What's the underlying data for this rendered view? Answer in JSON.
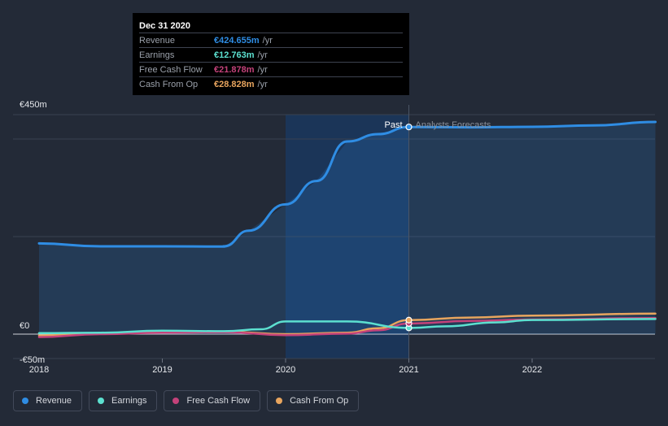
{
  "chart_data": {
    "type": "line",
    "title": "",
    "xlabel": "",
    "ylabel": "",
    "ylim": [
      -50,
      450
    ],
    "y_ticks": [
      {
        "value": 450,
        "label": "€450m"
      },
      {
        "value": 0,
        "label": "€0"
      },
      {
        "value": -50,
        "label": "-€50m"
      }
    ],
    "x_ticks": [
      {
        "value": 2018,
        "label": "2018"
      },
      {
        "value": 2019,
        "label": "2019"
      },
      {
        "value": 2020,
        "label": "2020"
      },
      {
        "value": 2021,
        "label": "2021"
      },
      {
        "value": 2022,
        "label": "2022"
      }
    ],
    "xlim": [
      2018,
      2023
    ],
    "past_label": "Past",
    "forecast_label": "Analysts Forecasts",
    "divider_x": 2021,
    "highlight_start_x": 2020,
    "series": [
      {
        "name": "Revenue",
        "color": "#2f8de4",
        "filled": true,
        "points": [
          [
            2018,
            186
          ],
          [
            2018.5,
            180
          ],
          [
            2019,
            180
          ],
          [
            2019.5,
            179.5
          ],
          [
            2019.5,
            180
          ],
          [
            2019.7,
            212
          ],
          [
            2020,
            266
          ],
          [
            2020.25,
            314
          ],
          [
            2020.5,
            395
          ],
          [
            2020.75,
            410
          ],
          [
            2021,
            424.7
          ],
          [
            2021.5,
            424
          ],
          [
            2022,
            425
          ],
          [
            2022.5,
            428
          ],
          [
            2023,
            435
          ]
        ]
      },
      {
        "name": "Earnings",
        "color": "#5ce0d0",
        "filled": false,
        "points": [
          [
            2018,
            2
          ],
          [
            2018.5,
            3
          ],
          [
            2019,
            7
          ],
          [
            2019.5,
            6
          ],
          [
            2019.8,
            10
          ],
          [
            2020,
            26
          ],
          [
            2020.5,
            26
          ],
          [
            2021,
            12.8
          ],
          [
            2021.3,
            16
          ],
          [
            2021.7,
            24
          ],
          [
            2022,
            29
          ],
          [
            2023,
            31
          ]
        ]
      },
      {
        "name": "Free Cash Flow",
        "color": "#c4427a",
        "filled": false,
        "points": [
          [
            2018,
            -6
          ],
          [
            2018.5,
            0
          ],
          [
            2019,
            3
          ],
          [
            2019.5,
            4
          ],
          [
            2020,
            -2
          ],
          [
            2020.5,
            1
          ],
          [
            2020.75,
            8
          ],
          [
            2021,
            21.9
          ],
          [
            2021.5,
            27
          ],
          [
            2022,
            30
          ],
          [
            2023,
            33
          ]
        ]
      },
      {
        "name": "Cash From Op",
        "color": "#e8a55e",
        "filled": false,
        "points": [
          [
            2018,
            -3
          ],
          [
            2018.5,
            2
          ],
          [
            2019,
            4
          ],
          [
            2019.5,
            5
          ],
          [
            2020,
            0
          ],
          [
            2020.5,
            3
          ],
          [
            2020.75,
            12
          ],
          [
            2021,
            28.8
          ],
          [
            2021.5,
            34
          ],
          [
            2022,
            38
          ],
          [
            2023,
            42
          ]
        ]
      }
    ]
  },
  "tooltip": {
    "date": "Dec 31 2020",
    "unit": "/yr",
    "rows": [
      {
        "label": "Revenue",
        "value": "€424.655m",
        "color": "#2f8de4"
      },
      {
        "label": "Earnings",
        "value": "€12.763m",
        "color": "#5ce0d0"
      },
      {
        "label": "Free Cash Flow",
        "value": "€21.878m",
        "color": "#c4427a"
      },
      {
        "label": "Cash From Op",
        "value": "€28.828m",
        "color": "#e8a55e"
      }
    ]
  },
  "legend": [
    {
      "label": "Revenue",
      "color": "#2f8de4"
    },
    {
      "label": "Earnings",
      "color": "#5ce0d0"
    },
    {
      "label": "Free Cash Flow",
      "color": "#c4427a"
    },
    {
      "label": "Cash From Op",
      "color": "#e8a55e"
    }
  ]
}
